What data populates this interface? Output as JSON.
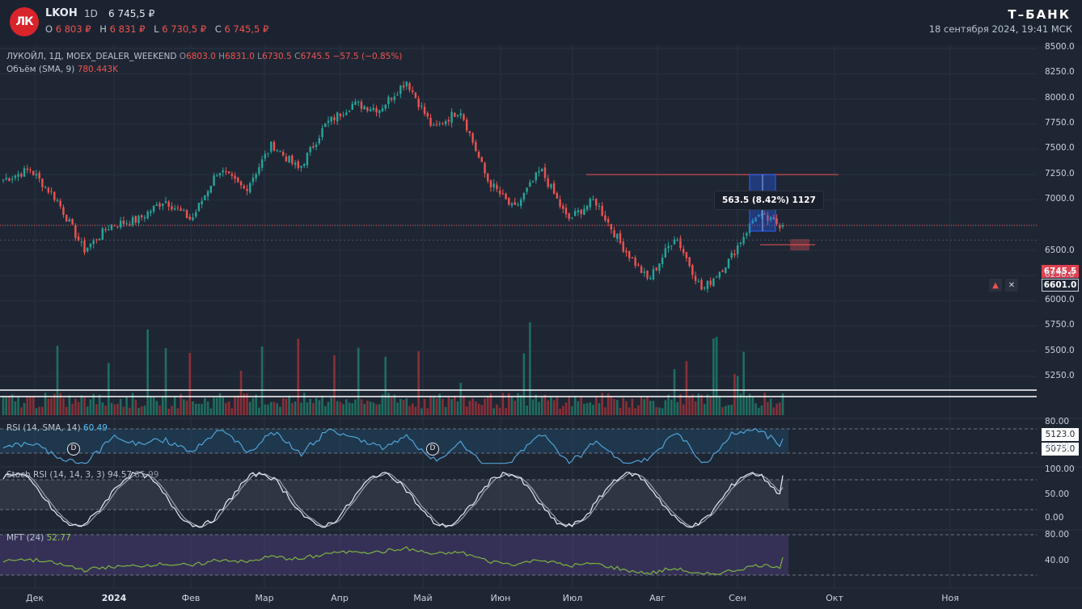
{
  "header": {
    "logo_text": "ЛК",
    "ticker": "LKOH",
    "interval": "1D",
    "price": "6 745,5 ₽",
    "ohlc": [
      {
        "k": "O",
        "v": "6 803 ₽"
      },
      {
        "k": "H",
        "v": "6 831 ₽"
      },
      {
        "k": "L",
        "v": "6 730,5 ₽"
      },
      {
        "k": "C",
        "v": "6 745,5 ₽"
      }
    ],
    "brand": "Т–БАНК",
    "datetime": "18 сентября 2024, 19:41 МСК"
  },
  "legend": {
    "main_prefix": "ЛУКОЙЛ, 1Д, MOEX_DEALER_WEEKEND",
    "main_o": "6803.0",
    "main_h": "6831.0",
    "main_l": "6730.5",
    "main_c": "6745.5",
    "main_change": "−57.5 (−0.85%)",
    "volume_label": "Объём (SMA, 9)",
    "volume_value": "780.443K",
    "rsi_label": "RSI (14, SMA, 14)",
    "rsi_value": "60.49",
    "stoch_label": "Stoch RSI (14, 14, 3, 3)",
    "stoch_k": "94.57",
    "stoch_d": "85.99",
    "mft_label": "MFT (24)",
    "mft_value": "52.77"
  },
  "measure": {
    "text": "563.5 (8.42%) 1127"
  },
  "price_tags": {
    "last": "6745.5",
    "alert": "6601.0",
    "vol1": "5123.0",
    "vol2": "5075.0"
  },
  "badges": {
    "dividend": "D"
  },
  "axis": {
    "price_ticks": [
      "8500.0",
      "8250.0",
      "8000.0",
      "7750.0",
      "7500.0",
      "7250.0",
      "7000.0",
      "6750.0",
      "6500.0",
      "6250.0",
      "6000.0",
      "5750.0",
      "5500.0",
      "5250.0"
    ],
    "rsi_ticks": [
      "80.00",
      "40.00"
    ],
    "stoch_ticks": [
      "100.00",
      "50.00",
      "0.00"
    ],
    "mft_ticks": [
      "80.00",
      "40.00"
    ],
    "time_ticks": [
      {
        "label": "Дек",
        "bold": false
      },
      {
        "label": "2024",
        "bold": true
      },
      {
        "label": "Фев",
        "bold": false
      },
      {
        "label": "Мар",
        "bold": false
      },
      {
        "label": "Апр",
        "bold": false
      },
      {
        "label": "Май",
        "bold": false
      },
      {
        "label": "Июн",
        "bold": false
      },
      {
        "label": "Июл",
        "bold": false
      },
      {
        "label": "Авг",
        "bold": false
      },
      {
        "label": "Сен",
        "bold": false
      },
      {
        "label": "Окт",
        "bold": false
      },
      {
        "label": "Ноя",
        "bold": false
      }
    ]
  },
  "colors": {
    "up": "#26a69a",
    "down": "#ef5350",
    "rsi": "#4fa3d9",
    "mft": "#7cb342",
    "stoch_k": "#e6ebf2",
    "stoch_d": "#9aa3ae",
    "measure": "#2962ff"
  },
  "chart_data": {
    "type": "candlestick",
    "instrument": "ЛУКОЙЛ, 1Д, MOEX_DEALER_WEEKEND",
    "ylim": [
      5000,
      8600
    ],
    "last_close": 6745.5,
    "keypoints": [
      {
        "x": "Дек",
        "close": 7200
      },
      {
        "x": "Дек",
        "close": 7300
      },
      {
        "x": "Дек",
        "close": 7000
      },
      {
        "x": "Дек",
        "close": 6500
      },
      {
        "x": "Дек",
        "close": 6750
      },
      {
        "x": "2024",
        "close": 6800
      },
      {
        "x": "2024",
        "close": 7000
      },
      {
        "x": "Фев",
        "close": 6800
      },
      {
        "x": "Фев",
        "close": 7300
      },
      {
        "x": "Фев",
        "close": 7100
      },
      {
        "x": "Мар",
        "close": 7550
      },
      {
        "x": "Мар",
        "close": 7300
      },
      {
        "x": "Апр",
        "close": 7750
      },
      {
        "x": "Апр",
        "close": 7950
      },
      {
        "x": "Апр",
        "close": 7900
      },
      {
        "x": "Май",
        "close": 8180
      },
      {
        "x": "Май",
        "close": 7700
      },
      {
        "x": "Июн",
        "close": 7900
      },
      {
        "x": "Июн",
        "close": 7200
      },
      {
        "x": "Июл",
        "close": 6900
      },
      {
        "x": "Июл",
        "close": 7300
      },
      {
        "x": "Июл",
        "close": 6800
      },
      {
        "x": "Авг",
        "close": 7000
      },
      {
        "x": "Авг",
        "close": 6550
      },
      {
        "x": "Авг",
        "close": 6200
      },
      {
        "x": "Авг",
        "close": 6650
      },
      {
        "x": "Сен",
        "close": 6100
      },
      {
        "x": "Сен",
        "close": 6400
      },
      {
        "x": "Сен",
        "close": 6850
      },
      {
        "x": "Сен",
        "close": 6745.5
      }
    ],
    "levels": {
      "resistance": 7250,
      "alert": 6601.0
    },
    "volume_sma_label": "780.443K",
    "rsi": {
      "last": 60.49,
      "bands": [
        70,
        30
      ],
      "ylim": [
        20,
        90
      ]
    },
    "stoch_rsi": {
      "k": 94.57,
      "d": 85.99,
      "bands": [
        80,
        20
      ]
    },
    "mft": {
      "last": 52.77,
      "bands": [
        80,
        20
      ]
    }
  }
}
